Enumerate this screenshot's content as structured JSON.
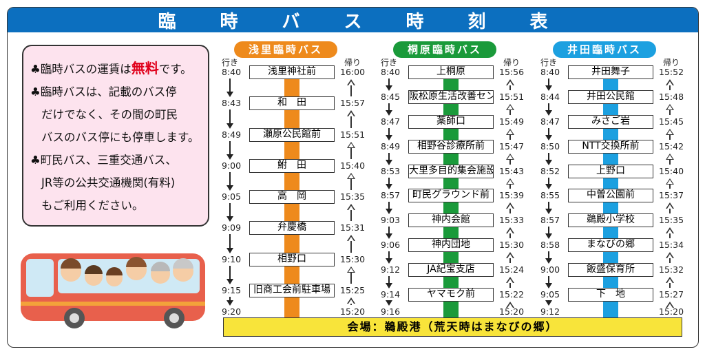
{
  "title": [
    "臨",
    "時",
    "バ",
    "ス",
    "時",
    "刻",
    "表"
  ],
  "info": {
    "bullet_icon": "club-suit-icon",
    "line1_a": "臨時バスの運賃は",
    "line1_free": "無料",
    "line1_b": "です。",
    "line2": "臨時バスは、記載のバス停",
    "line3": "だけでなく、その間の町民",
    "line4": "バスのバス停にも停車します。",
    "line5": "町民バス、三重交通バス、",
    "line6": "JR等の公共交通機関(有料)",
    "line7": "もご利用ください。"
  },
  "labels": {
    "outbound": "行き",
    "return": "帰り"
  },
  "routes": [
    {
      "name": "浅里臨時バス",
      "color": "#ee8a1c",
      "stops": [
        "浅里神社前",
        "和　田",
        "瀬原公民館前",
        "鮒　田",
        "高　岡",
        "弁慶橋",
        "相野口",
        "旧商工会前駐車場"
      ],
      "out": [
        "8:40",
        "8:43",
        "8:49",
        "9:00",
        "9:05",
        "9:09",
        "9:10",
        "9:15",
        "9:20"
      ],
      "ret": [
        "16:00",
        "15:57",
        "15:51",
        "15:40",
        "15:35",
        "15:31",
        "15:30",
        "15:25",
        "15:20"
      ]
    },
    {
      "name": "桐原臨時バス",
      "color": "#1a9a3a",
      "stops": [
        "上桐原",
        "阪松原生活改善センター",
        "薬師口",
        "相野谷診療所前",
        "大里多目的集会施設",
        "町民グラウンド前",
        "神内会館",
        "神内団地",
        "JA紀宝支店",
        "ヤマモク前"
      ],
      "out": [
        "8:40",
        "8:45",
        "8:47",
        "8:49",
        "8:53",
        "8:57",
        "9:03",
        "9:06",
        "9:12",
        "9:14",
        "9:16"
      ],
      "ret": [
        "15:56",
        "15:51",
        "15:49",
        "15:47",
        "15:43",
        "15:39",
        "15:33",
        "15:30",
        "15:24",
        "15:22",
        "15:20"
      ]
    },
    {
      "name": "井田臨時バス",
      "color": "#1ca0e0",
      "stops": [
        "井田舞子",
        "井田公民館",
        "みさご岩",
        "NTT交換所前",
        "上野口",
        "中曽公園前",
        "鵜殿小学校",
        "まなびの郷",
        "飯盛保育所",
        "下　地"
      ],
      "out": [
        "8:40",
        "8:44",
        "8:47",
        "8:50",
        "8:52",
        "8:55",
        "8:57",
        "8:58",
        "9:00",
        "9:05",
        "9:12"
      ],
      "ret": [
        "15:52",
        "15:48",
        "15:45",
        "15:42",
        "15:40",
        "15:37",
        "15:35",
        "15:34",
        "15:32",
        "15:27",
        "15:20"
      ]
    }
  ],
  "venue": "会場：鵜殿港（荒天時はまなびの郷）",
  "colors": {
    "title_bar": "#0c6fbf",
    "info_bg": "#fde3ee",
    "venue_bg": "#f8e43a",
    "free_text": "#e0001b"
  }
}
